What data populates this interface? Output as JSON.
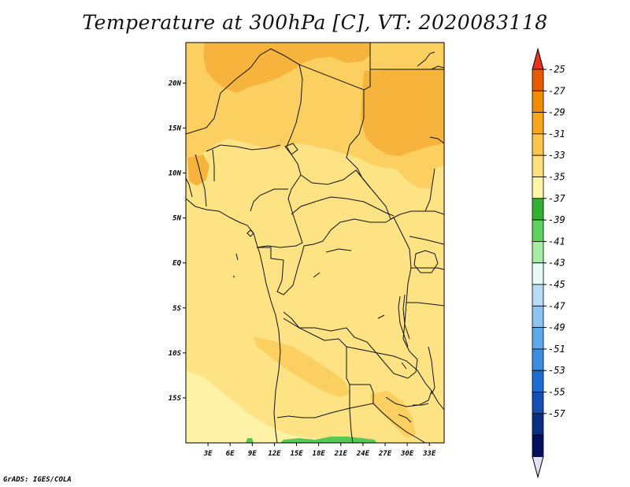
{
  "title": "Temperature at 300hPa [C], VT: 2020083118",
  "credit": "GrADS: IGES/COLA",
  "map": {
    "lon_range": [
      0,
      35
    ],
    "lat_range": [
      -20,
      24.5
    ],
    "lon_ticks": [
      {
        "value": 3,
        "label": "3E"
      },
      {
        "value": 6,
        "label": "6E"
      },
      {
        "value": 9,
        "label": "9E"
      },
      {
        "value": 12,
        "label": "12E"
      },
      {
        "value": 15,
        "label": "15E"
      },
      {
        "value": 18,
        "label": "18E"
      },
      {
        "value": 21,
        "label": "21E"
      },
      {
        "value": 24,
        "label": "24E"
      },
      {
        "value": 27,
        "label": "27E"
      },
      {
        "value": 30,
        "label": "30E"
      },
      {
        "value": 33,
        "label": "33E"
      }
    ],
    "lat_ticks": [
      {
        "value": 20,
        "label": "20N"
      },
      {
        "value": 15,
        "label": "15N"
      },
      {
        "value": 10,
        "label": "10N"
      },
      {
        "value": 5,
        "label": "5N"
      },
      {
        "value": 0,
        "label": "EQ"
      },
      {
        "value": -5,
        "label": "5S"
      },
      {
        "value": -10,
        "label": "10S"
      },
      {
        "value": -15,
        "label": "15S"
      }
    ]
  },
  "colorbar": {
    "levels": [
      "-25",
      "-27",
      "-29",
      "-31",
      "-33",
      "-35",
      "-37",
      "-39",
      "-41",
      "-43",
      "-45",
      "-47",
      "-49",
      "-51",
      "-53",
      "-55",
      "-57"
    ],
    "colors": [
      "#e65a00",
      "#f08c00",
      "#f7a61e",
      "#fbc64e",
      "#fde07d",
      "#fef5a8",
      "#33b033",
      "#5fd15f",
      "#a6eba6",
      "#e6faf8",
      "#b6dcf7",
      "#8cc3ef",
      "#5fa8ea",
      "#3c8ce0",
      "#1e6ed2",
      "#1450b4",
      "#0a2f82",
      "#04105e"
    ],
    "top_cap_color": "#e8321e",
    "bottom_cap_color": "#e1e1f5"
  },
  "field_colors": {
    "t29": "#f7b43c",
    "t31": "#fbd060",
    "t33": "#fde384",
    "t35": "#fef2a6",
    "t37": "#57c857"
  }
}
